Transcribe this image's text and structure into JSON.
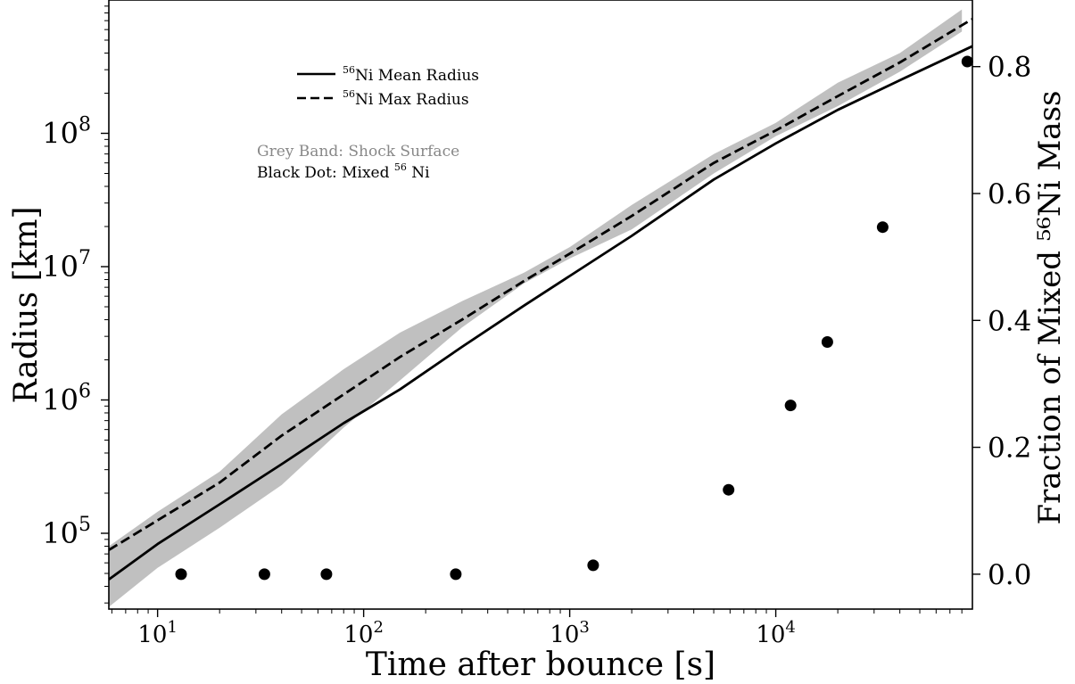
{
  "chart_data": {
    "type": "line",
    "xlabel": "Time after bounce [s]",
    "ylabel": "Radius [km]",
    "y2label": "Fraction of Mixed ⁵⁶Ni Mass",
    "xscale": "log",
    "yscale": "log",
    "xlim": [
      5.8,
      90000
    ],
    "ylim": [
      27000,
      1000000000
    ],
    "y2lim": [
      -0.055,
      0.905
    ],
    "x_ticks": [
      {
        "value": 10,
        "base": "10",
        "exp": "1"
      },
      {
        "value": 100,
        "base": "10",
        "exp": "2"
      },
      {
        "value": 1000,
        "base": "10",
        "exp": "3"
      },
      {
        "value": 10000,
        "base": "10",
        "exp": "4"
      }
    ],
    "y_ticks": [
      {
        "value": 100000,
        "base": "10",
        "exp": "5"
      },
      {
        "value": 1000000,
        "base": "10",
        "exp": "6"
      },
      {
        "value": 10000000,
        "base": "10",
        "exp": "7"
      },
      {
        "value": 100000000,
        "base": "10",
        "exp": "8"
      }
    ],
    "y2_ticks": [
      {
        "value": 0.0,
        "label": "0.0"
      },
      {
        "value": 0.2,
        "label": "0.2"
      },
      {
        "value": 0.4,
        "label": "0.4"
      },
      {
        "value": 0.6,
        "label": "0.6"
      },
      {
        "value": 0.8,
        "label": "0.8"
      }
    ],
    "series": [
      {
        "name": "⁵⁶Ni Mean Radius",
        "style": "solid",
        "x": [
          5.8,
          10,
          20,
          40,
          80,
          150,
          300,
          600,
          1000,
          2000,
          5000,
          10000,
          20000,
          40000,
          90000
        ],
        "y": [
          45000,
          83000,
          165000,
          330000,
          670000,
          1200000,
          2500000,
          5100000,
          8500000,
          17000000,
          45000000,
          84000000,
          150000000,
          250000000,
          450000000
        ]
      },
      {
        "name": "⁵⁶Ni Max Radius",
        "style": "dashed",
        "x": [
          5.8,
          10,
          20,
          40,
          80,
          150,
          300,
          600,
          1000,
          2000,
          5000,
          10000,
          20000,
          40000,
          90000
        ],
        "y": [
          75000,
          125000,
          240000,
          540000,
          1100000,
          2100000,
          4000000,
          7800000,
          12500000,
          24000000,
          60000000,
          105000000,
          190000000,
          340000000,
          720000000
        ]
      },
      {
        "name": "Shock Surface",
        "style": "band",
        "x": [
          5.8,
          10,
          20,
          40,
          80,
          150,
          300,
          600,
          1000,
          2000,
          5000,
          10000,
          20000,
          40000,
          80000
        ],
        "lower": [
          28000,
          55000,
          110000,
          230000,
          620000,
          1400000,
          3500000,
          7500000,
          11500000,
          19000000,
          50000000,
          95000000,
          160000000,
          290000000,
          580000000
        ],
        "upper": [
          80000,
          145000,
          290000,
          780000,
          1700000,
          3200000,
          5500000,
          9000000,
          14000000,
          29000000,
          70000000,
          120000000,
          240000000,
          400000000,
          850000000
        ]
      }
    ],
    "points": {
      "name": "Mixed ⁵⁶Ni",
      "axis": "right",
      "x": [
        13,
        33,
        66,
        280,
        1300,
        5900,
        11800,
        17800,
        33000,
        85000
      ],
      "y": [
        0.0,
        0.0,
        0.0,
        0.0,
        0.014,
        0.133,
        0.266,
        0.366,
        0.547,
        0.808
      ]
    },
    "legend": {
      "placement": "upper-left",
      "entries": [
        {
          "pre": "56",
          "label": "Ni Mean Radius",
          "style": "solid"
        },
        {
          "pre": "56",
          "label": "Ni Max Radius",
          "style": "dashed"
        }
      ]
    },
    "annotations": [
      {
        "text": "Grey Band: Shock Surface",
        "color": "#888888"
      },
      {
        "text_before": "Black Dot: Mixed ",
        "sup": "56",
        "text_after": " Ni",
        "color": "#000000"
      }
    ],
    "band_color": "#c0c0c0",
    "grid": false
  }
}
